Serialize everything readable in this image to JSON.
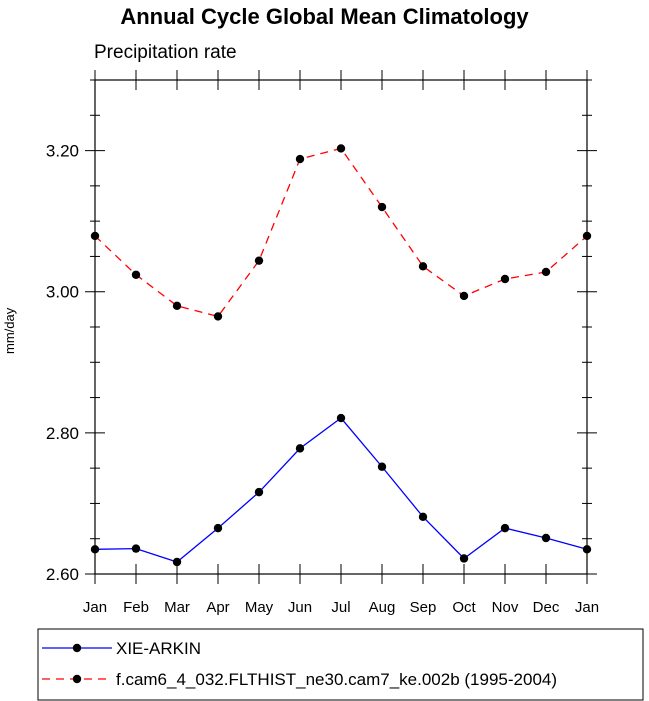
{
  "chart_data": {
    "type": "line",
    "title": "Annual Cycle Global Mean Climatology",
    "subtitle": "Precipitation rate",
    "xlabel": "",
    "ylabel": "mm/day",
    "categories": [
      "Jan",
      "Feb",
      "Mar",
      "Apr",
      "May",
      "Jun",
      "Jul",
      "Aug",
      "Sep",
      "Oct",
      "Nov",
      "Dec",
      "Jan"
    ],
    "ylim": [
      2.6,
      3.3
    ],
    "yticks": [
      "2.60",
      "2.80",
      "3.00",
      "3.20"
    ],
    "grid": false,
    "legend_position": "bottom",
    "series": [
      {
        "name": "XIE-ARKIN",
        "color": "#0000ff",
        "style": "solid",
        "values": [
          2.635,
          2.636,
          2.617,
          2.665,
          2.716,
          2.778,
          2.821,
          2.752,
          2.681,
          2.622,
          2.665,
          2.651,
          2.635
        ]
      },
      {
        "name": "f.cam6_4_032.FLTHIST_ne30.cam7_ke.002b (1995-2004)",
        "color": "#ff0000",
        "style": "dashed",
        "values": [
          3.079,
          3.024,
          2.98,
          2.965,
          3.044,
          3.188,
          3.203,
          3.12,
          3.036,
          2.994,
          3.018,
          3.028,
          3.079
        ]
      }
    ]
  }
}
